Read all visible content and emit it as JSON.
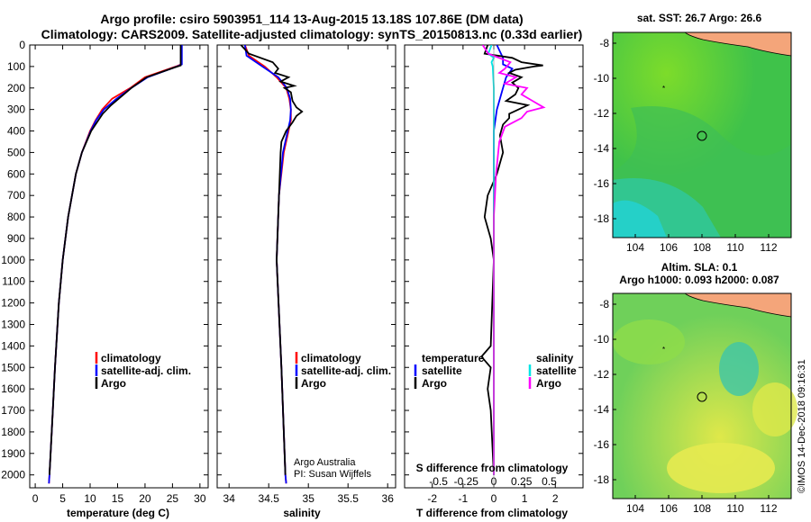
{
  "title": {
    "line1": "Argo profile: csiro 5903951_114 13-Aug-2015 13.18S 107.86E (DM data)",
    "line2": "Climatology: CARS2009. Satellite-adjusted climatology: synTS_20150813.nc (0.33d earlier)"
  },
  "colors": {
    "climatology": "#ff0000",
    "satellite": "#0000ff",
    "argo": "#000000",
    "sal_satellite": "#00e5e5",
    "sal_argo": "#ff00ff",
    "land": "#f4a57a"
  },
  "depth_axis": {
    "ticks": [
      0,
      100,
      200,
      300,
      400,
      500,
      600,
      700,
      800,
      900,
      1000,
      1100,
      1200,
      1300,
      1400,
      1500,
      1600,
      1700,
      1800,
      1900,
      2000
    ],
    "range": [
      0,
      2060
    ]
  },
  "chart_data": [
    {
      "type": "line",
      "name": "temperature",
      "xlabel": "temperature (deg C)",
      "xlim": [
        -1,
        31.5
      ],
      "xticks": [
        0,
        5,
        10,
        15,
        20,
        25,
        30
      ],
      "ylabel": "depth",
      "legend": [
        "climatology",
        "satellite-adj. clim.",
        "Argo"
      ],
      "series": [
        {
          "name": "climatology",
          "depth": [
            0,
            90,
            100,
            150,
            200,
            250,
            300,
            350,
            400,
            500,
            600,
            800,
            1000,
            1200,
            1500,
            1800,
            2000,
            2040
          ],
          "values": [
            26.6,
            26.6,
            25.6,
            20.0,
            17.3,
            14.0,
            12.2,
            11.0,
            10.0,
            8.5,
            7.4,
            6.0,
            5.0,
            4.3,
            3.6,
            3.0,
            2.6,
            2.5
          ]
        },
        {
          "name": "satellite-adj. clim.",
          "depth": [
            0,
            90,
            100,
            150,
            200,
            250,
            300,
            350,
            400,
            500,
            600,
            800,
            1000,
            1200,
            1500,
            1800,
            2000,
            2040
          ],
          "values": [
            26.7,
            26.7,
            25.8,
            20.5,
            17.5,
            14.8,
            12.5,
            11.1,
            10.1,
            8.5,
            7.4,
            6.0,
            5.0,
            4.3,
            3.6,
            3.0,
            2.6,
            2.5
          ]
        },
        {
          "name": "Argo",
          "depth": [
            0,
            95,
            105,
            150,
            200,
            250,
            280,
            320,
            400,
            500,
            600,
            800,
            1000,
            1200,
            1500,
            1800,
            2000
          ],
          "values": [
            26.5,
            26.5,
            25.3,
            20.3,
            17.5,
            15.2,
            13.8,
            12.3,
            10.2,
            8.5,
            7.4,
            6.0,
            5.0,
            4.3,
            3.6,
            3.0,
            2.6
          ]
        }
      ]
    },
    {
      "type": "line",
      "name": "salinity",
      "xlabel": "salinity",
      "xlim": [
        33.85,
        36.1
      ],
      "xticks": [
        34,
        34.5,
        35,
        35.5,
        36
      ],
      "legend": [
        "climatology",
        "satellite-adj. clim.",
        "Argo"
      ],
      "series": [
        {
          "name": "climatology",
          "depth": [
            0,
            50,
            100,
            150,
            200,
            250,
            300,
            350,
            400,
            500,
            700,
            1000,
            1500,
            2000,
            2040
          ],
          "values": [
            34.2,
            34.25,
            34.45,
            34.6,
            34.72,
            34.76,
            34.78,
            34.78,
            34.75,
            34.69,
            34.63,
            34.6,
            34.66,
            34.71,
            34.72
          ]
        },
        {
          "name": "satellite-adj. clim.",
          "depth": [
            0,
            50,
            100,
            150,
            200,
            250,
            300,
            350,
            400,
            500,
            700,
            1000,
            1500,
            2000,
            2040
          ],
          "values": [
            34.2,
            34.22,
            34.42,
            34.62,
            34.73,
            34.77,
            34.78,
            34.77,
            34.74,
            34.68,
            34.63,
            34.6,
            34.66,
            34.71,
            34.72
          ]
        },
        {
          "name": "Argo",
          "depth": [
            0,
            40,
            80,
            110,
            130,
            150,
            170,
            190,
            200,
            220,
            260,
            290,
            310,
            330,
            360,
            400,
            450,
            500,
            700,
            1000,
            1500,
            2000
          ],
          "values": [
            34.15,
            34.25,
            34.55,
            34.62,
            34.58,
            34.75,
            34.65,
            34.82,
            34.7,
            34.78,
            34.8,
            34.85,
            34.92,
            34.85,
            34.8,
            34.72,
            34.66,
            34.65,
            34.63,
            34.6,
            34.66,
            34.71
          ]
        }
      ]
    },
    {
      "type": "line",
      "name": "difference",
      "xlabel": "T difference from climatology",
      "xlabel2": "S difference from climatology",
      "xlim": [
        -2.9,
        2.9
      ],
      "xticks": [
        -2,
        -1,
        0,
        1,
        2
      ],
      "sticks": [
        -0.5,
        -0.25,
        0,
        0.25,
        0.5
      ],
      "legend_left_title": "temperature",
      "legend_right_title": "salinity",
      "legend_left": [
        "satellite",
        "Argo"
      ],
      "legend_right": [
        "satellite",
        "Argo"
      ],
      "series": [
        {
          "name": "T satellite",
          "depth": [
            0,
            30,
            60,
            90,
            110,
            150,
            200,
            300,
            400,
            500,
            600,
            800,
            1000,
            2000
          ],
          "values": [
            0.1,
            0.2,
            0.3,
            0.3,
            0.6,
            0.4,
            0.3,
            0.1,
            0.0,
            0.0,
            0.0,
            0.0,
            0.0,
            0.0
          ]
        },
        {
          "name": "T Argo",
          "depth": [
            0,
            40,
            60,
            80,
            95,
            100,
            115,
            130,
            150,
            175,
            200,
            230,
            260,
            280,
            300,
            320,
            340,
            370,
            420,
            500,
            600,
            700,
            800,
            900,
            1000,
            1400,
            1450,
            1500,
            1600,
            1700,
            2000
          ],
          "values": [
            -0.2,
            -0.3,
            0.6,
            0.9,
            1.6,
            1.3,
            0.7,
            0.5,
            0.9,
            0.6,
            0.8,
            0.7,
            0.4,
            1.1,
            0.8,
            0.5,
            0.5,
            0.3,
            0.2,
            0.3,
            0.1,
            -0.2,
            -0.3,
            -0.1,
            0.0,
            -0.1,
            -0.4,
            -0.1,
            -0.2,
            -0.1,
            0.0
          ]
        },
        {
          "name": "S satellite",
          "depth": [
            0,
            40,
            60,
            80,
            100,
            200,
            400,
            600,
            800,
            2000
          ],
          "values": [
            -0.02,
            -0.05,
            0.0,
            -0.02,
            -0.01,
            0.0,
            0.0,
            0.0,
            0.0,
            0.0
          ]
        },
        {
          "name": "S Argo",
          "depth": [
            0,
            40,
            80,
            110,
            130,
            150,
            180,
            200,
            230,
            260,
            290,
            310,
            340,
            380,
            450,
            600,
            800,
            2000
          ],
          "values": [
            -0.1,
            -0.05,
            0.15,
            0.1,
            0.05,
            0.2,
            0.1,
            0.3,
            0.25,
            0.35,
            0.45,
            0.3,
            0.25,
            0.1,
            0.05,
            0.02,
            0.0,
            0.0
          ]
        }
      ]
    }
  ],
  "maps": {
    "sst": {
      "title": "sat. SST: 26.7 Argo: 26.6",
      "yticks": [
        "-8",
        "-10",
        "-12",
        "-14",
        "-16",
        "-18"
      ],
      "xticks": [
        "104",
        "106",
        "108",
        "110",
        "112"
      ]
    },
    "sla": {
      "title1": "Altim. SLA: 0.1",
      "title2": "Argo h1000: 0.093 h2000: 0.087",
      "yticks": [
        "-8",
        "-10",
        "-12",
        "-14",
        "-16",
        "-18"
      ],
      "xticks": [
        "104",
        "106",
        "108",
        "110",
        "112"
      ]
    }
  },
  "annotations": {
    "credit1": "Argo Australia",
    "credit2": "PI: Susan Wijffels",
    "footer": "©IMOS 14-Dec-2018 09:16:31"
  }
}
